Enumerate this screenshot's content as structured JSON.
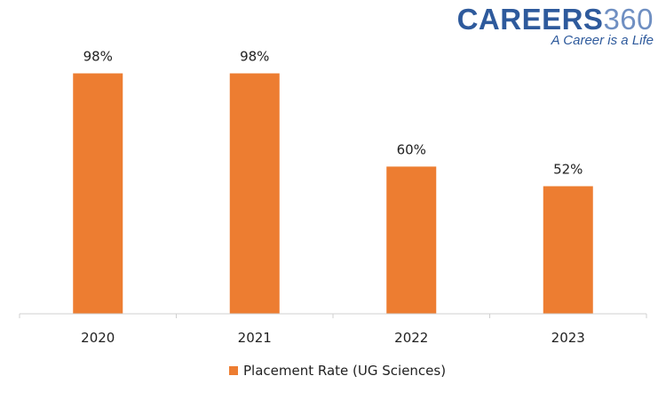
{
  "logo": {
    "brand": "CAREERS",
    "brand_number": "360",
    "tagline": "A Career is a Life"
  },
  "chart_data": {
    "type": "bar",
    "categories": [
      "2020",
      "2021",
      "2022",
      "2023"
    ],
    "series": [
      {
        "name": "Placement Rate (UG Sciences)",
        "values": [
          98,
          98,
          60,
          52
        ],
        "labels": [
          "98%",
          "98%",
          "60%",
          "52%"
        ],
        "color": "#ed7d31"
      }
    ],
    "title": "",
    "xlabel": "",
    "ylabel": "",
    "ylim": [
      0,
      100
    ],
    "grid": false,
    "legend": "bottom-center"
  }
}
